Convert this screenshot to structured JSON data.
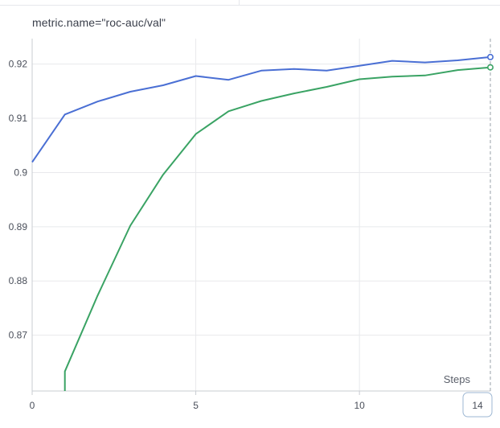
{
  "panel": {
    "title": "metric.name=\"roc-auc/val\""
  },
  "chart_data": {
    "type": "line",
    "xlabel": "Steps",
    "ylabel": "",
    "xlim": [
      0,
      14
    ],
    "ylim": [
      0.8597,
      0.9247
    ],
    "x_ticks": [
      0,
      5,
      10
    ],
    "y_ticks": [
      0.87,
      0.88,
      0.89,
      0.9,
      0.91,
      0.92
    ],
    "y_tick_labels": [
      "0.87",
      "0.88",
      "0.89",
      "0.9",
      "0.91",
      "0.92"
    ],
    "x_tick_labels": [
      "0",
      "5",
      "10"
    ],
    "hover_step_label": "14",
    "grid": true,
    "colors": {
      "series_blue": "#4a6fd4",
      "series_green": "#3aa364",
      "grid": "#e8e9ec",
      "axis": "#c9ccd2",
      "hover_line": "#9aa0aa"
    },
    "series": [
      {
        "color": "#4a6fd4",
        "x": [
          0,
          1,
          2,
          3,
          4,
          5,
          6,
          7,
          8,
          9,
          10,
          11,
          12,
          13,
          14
        ],
        "y": [
          0.9019,
          0.9107,
          0.9131,
          0.9149,
          0.9161,
          0.9178,
          0.9171,
          0.9188,
          0.9191,
          0.9188,
          0.9197,
          0.9206,
          0.9203,
          0.9207,
          0.9213
        ]
      },
      {
        "color": "#3aa364",
        "x": [
          1,
          2,
          3,
          4,
          5,
          6,
          7,
          8,
          9,
          10,
          11,
          12,
          13,
          14
        ],
        "y": [
          0.8633,
          0.8773,
          0.8902,
          0.8996,
          0.9071,
          0.9113,
          0.9132,
          0.9146,
          0.9158,
          0.9172,
          0.9177,
          0.9179,
          0.9189,
          0.9194
        ]
      }
    ],
    "series_lower_tail": {
      "x": [
        1,
        1
      ],
      "y": [
        0.8597,
        0.8633
      ]
    }
  }
}
